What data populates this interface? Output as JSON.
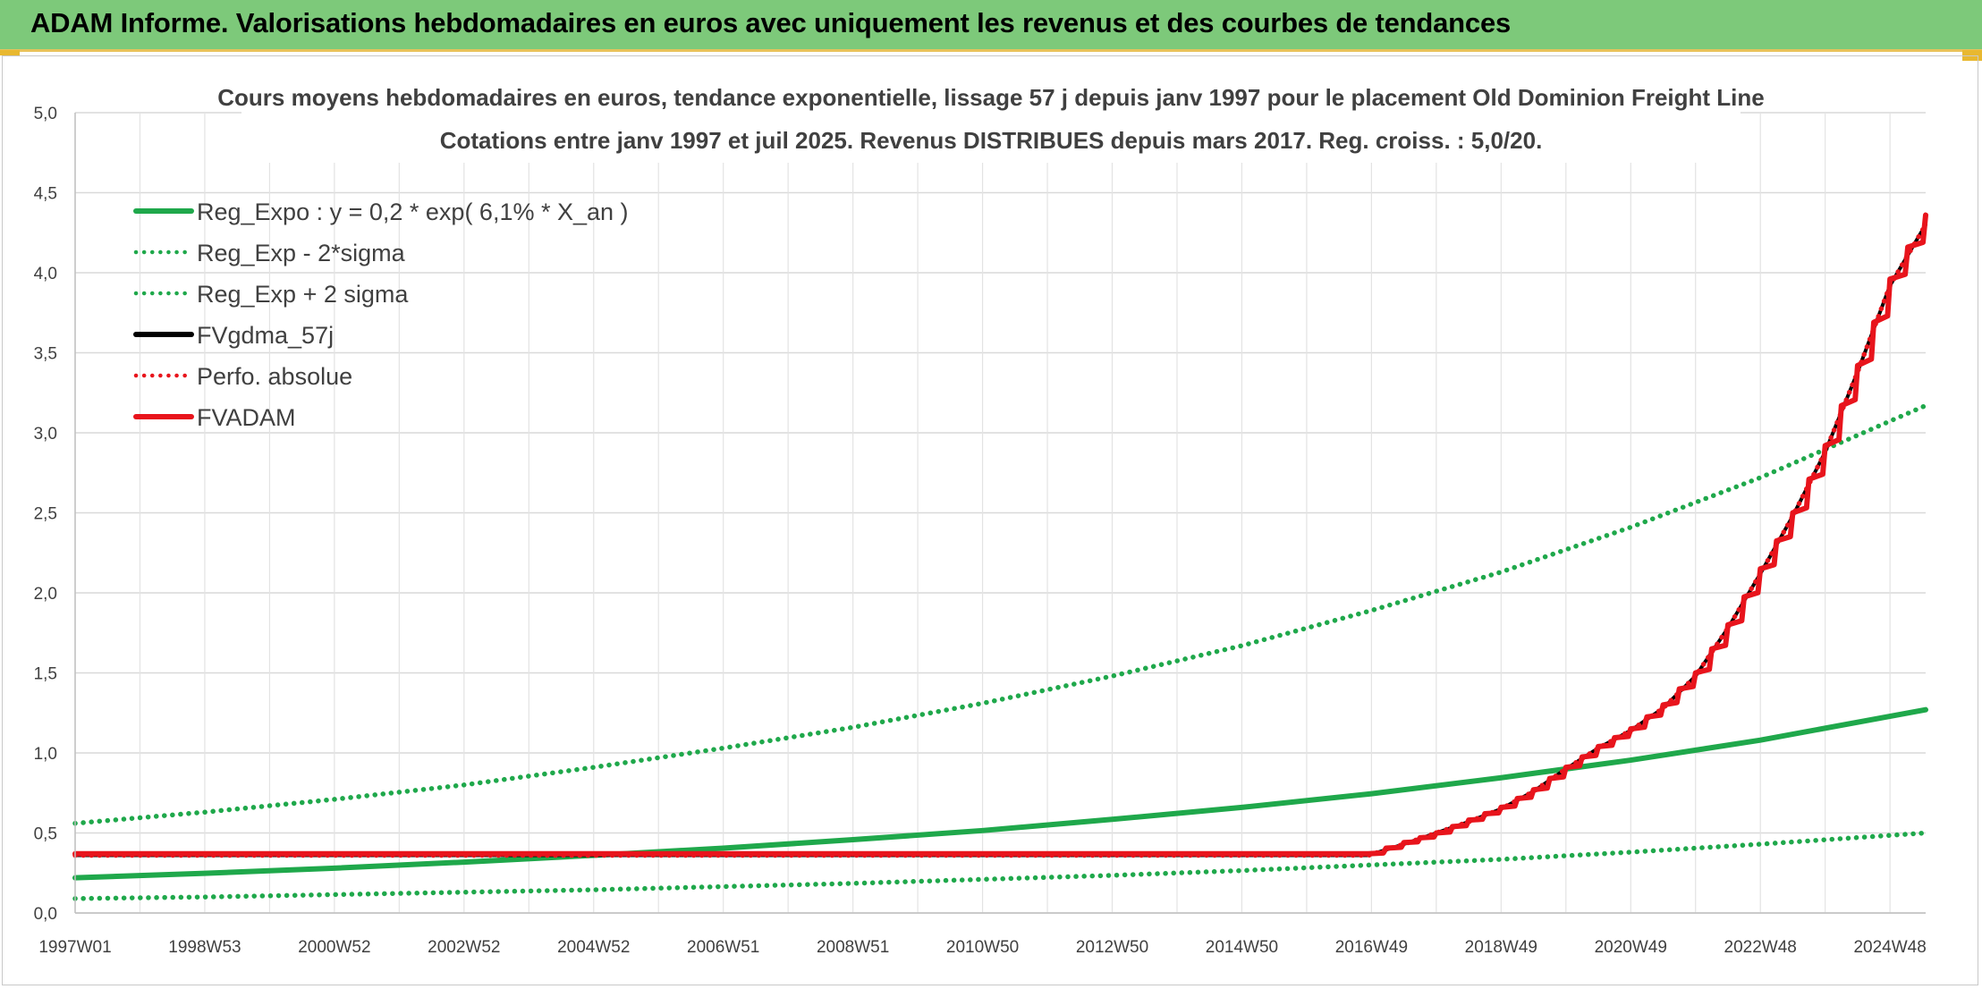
{
  "header": {
    "title": "ADAM Informe. Valorisations hebdomadaires en euros avec uniquement les revenus et des courbes de tendances"
  },
  "chart_data": {
    "type": "line",
    "title_line1": "Cours moyens hebdomadaires en euros, tendance exponentielle, lissage 57 j depuis janv 1997 pour le placement Old Dominion Freight Line",
    "title_line2": "Cotations entre janv 1997 et juil 2025. Revenus DISTRIBUES depuis mars 2017. Reg. croiss. : 5,0/20.",
    "ylim": [
      0,
      5
    ],
    "y_ticks": [
      "0,0",
      "0,5",
      "1,0",
      "1,5",
      "2,0",
      "2,5",
      "3,0",
      "3,5",
      "4,0",
      "4,5",
      "5,0"
    ],
    "x_range": [
      1997.0,
      2025.55
    ],
    "x_ticks": [
      {
        "label": "1997W01",
        "x": 1997.0
      },
      {
        "label": "1998W53",
        "x": 1999.0
      },
      {
        "label": "2000W52",
        "x": 2001.0
      },
      {
        "label": "2002W52",
        "x": 2003.0
      },
      {
        "label": "2004W52",
        "x": 2005.0
      },
      {
        "label": "2006W51",
        "x": 2007.0
      },
      {
        "label": "2008W51",
        "x": 2009.0
      },
      {
        "label": "2010W50",
        "x": 2011.0
      },
      {
        "label": "2012W50",
        "x": 2013.0
      },
      {
        "label": "2014W50",
        "x": 2015.0
      },
      {
        "label": "2016W49",
        "x": 2017.0
      },
      {
        "label": "2018W49",
        "x": 2019.0
      },
      {
        "label": "2020W49",
        "x": 2021.0
      },
      {
        "label": "2022W48",
        "x": 2023.0
      },
      {
        "label": "2024W48",
        "x": 2025.0
      }
    ],
    "grid": true,
    "legend_position": "top-left",
    "series": [
      {
        "name": "Reg_Expo : y = 0,2 * exp( 6,1% *  X_an )",
        "color": "#1fa84b",
        "style": "solid",
        "x": [
          1997,
          1999,
          2001,
          2003,
          2005,
          2007,
          2009,
          2011,
          2013,
          2015,
          2017,
          2019,
          2021,
          2023,
          2025.55
        ],
        "values": [
          0.22,
          0.248,
          0.28,
          0.318,
          0.36,
          0.405,
          0.458,
          0.515,
          0.585,
          0.66,
          0.745,
          0.845,
          0.955,
          1.08,
          1.27
        ]
      },
      {
        "name": "Reg_Exp - 2*sigma",
        "color": "#1fa84b",
        "style": "dotted",
        "x": [
          1997,
          1999,
          2001,
          2003,
          2005,
          2007,
          2009,
          2011,
          2013,
          2015,
          2017,
          2019,
          2021,
          2023,
          2025.55
        ],
        "values": [
          0.09,
          0.1,
          0.115,
          0.13,
          0.145,
          0.165,
          0.185,
          0.21,
          0.235,
          0.265,
          0.3,
          0.335,
          0.38,
          0.43,
          0.5
        ]
      },
      {
        "name": "Reg_Exp + 2 sigma",
        "color": "#1fa84b",
        "style": "dotted",
        "x": [
          1997,
          1999,
          2001,
          2003,
          2005,
          2007,
          2009,
          2011,
          2013,
          2015,
          2017,
          2019,
          2021,
          2023,
          2025.55
        ],
        "values": [
          0.56,
          0.63,
          0.71,
          0.8,
          0.91,
          1.03,
          1.16,
          1.31,
          1.48,
          1.67,
          1.89,
          2.13,
          2.41,
          2.72,
          3.17
        ]
      },
      {
        "name": "FVgdma_57j",
        "color": "#000000",
        "style": "solid",
        "x": [
          1997,
          2016.95,
          2017.5,
          2018,
          2018.5,
          2019,
          2019.5,
          2020,
          2020.5,
          2021,
          2021.5,
          2022,
          2022.5,
          2023,
          2023.5,
          2024,
          2024.5,
          2025,
          2025.55
        ],
        "values": [
          0.36,
          0.36,
          0.43,
          0.5,
          0.57,
          0.65,
          0.76,
          0.9,
          1.03,
          1.14,
          1.28,
          1.48,
          1.78,
          2.12,
          2.48,
          2.88,
          3.38,
          3.92,
          4.3
        ]
      },
      {
        "name": "Perfo. absolue",
        "color": "#e8141c",
        "style": "dotted",
        "x": [
          1997,
          2016.95,
          2017.5,
          2018,
          2018.5,
          2019,
          2019.5,
          2020,
          2020.5,
          2021,
          2021.5,
          2022,
          2022.5,
          2023,
          2023.5,
          2024,
          2024.5,
          2025,
          2025.55
        ],
        "values": [
          0.36,
          0.36,
          0.43,
          0.5,
          0.57,
          0.65,
          0.76,
          0.9,
          1.03,
          1.14,
          1.28,
          1.48,
          1.78,
          2.12,
          2.48,
          2.88,
          3.38,
          3.92,
          4.3
        ]
      },
      {
        "name": "FVADAM",
        "color": "#e8141c",
        "style": "solid",
        "x": [
          1997,
          2016.95,
          2017.5,
          2018,
          2018.5,
          2019,
          2019.5,
          2020,
          2020.5,
          2021,
          2021.5,
          2022,
          2022.5,
          2023,
          2023.5,
          2024,
          2024.5,
          2025,
          2025.55
        ],
        "values": [
          0.37,
          0.37,
          0.44,
          0.5,
          0.58,
          0.66,
          0.77,
          0.91,
          1.04,
          1.15,
          1.3,
          1.5,
          1.8,
          2.15,
          2.5,
          2.92,
          3.42,
          3.96,
          4.36
        ]
      }
    ]
  }
}
